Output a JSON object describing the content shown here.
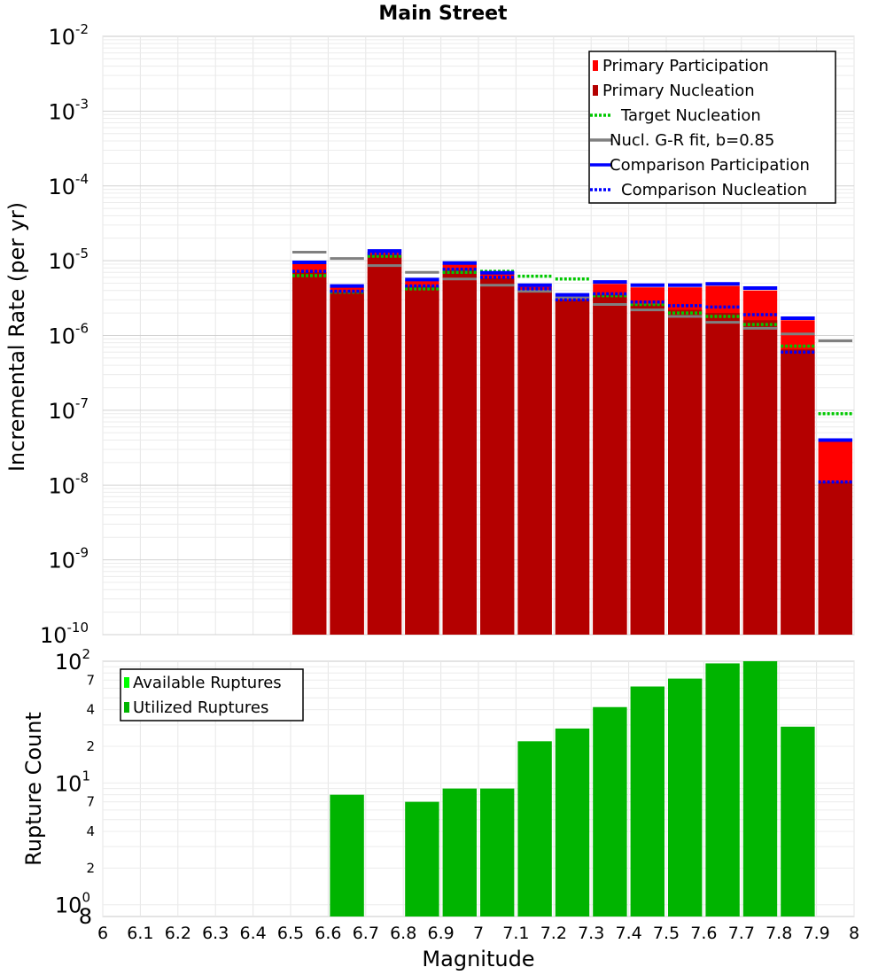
{
  "title": "Main Street",
  "xlabel": "Magnitude",
  "chart_data": [
    {
      "type": "bar",
      "name": "mfd-panel",
      "ylabel": "Incremental Rate (per yr)",
      "yscale": "log",
      "ylim": [
        1e-10,
        0.01
      ],
      "xlim": [
        6.0,
        8.0
      ],
      "bin_width": 0.1,
      "y_major_exponents": [
        -2,
        -3,
        -4,
        -5,
        -6,
        -7,
        -8,
        -9,
        -10
      ],
      "legend_position": "top-right",
      "legend": [
        {
          "label": "Primary Participation",
          "color": "#ff0000",
          "style": "box"
        },
        {
          "label": "Primary Nucleation",
          "color": "#b40000",
          "style": "box"
        },
        {
          "label": "Target Nucleation",
          "color": "#00c800",
          "style": "dotted"
        },
        {
          "label": "Nucl. G-R fit, b=0.85",
          "color": "#808080",
          "style": "solid"
        },
        {
          "label": "Comparison Participation",
          "color": "#0000ff",
          "style": "solid"
        },
        {
          "label": "Comparison Nucleation",
          "color": "#0000ff",
          "style": "dotted"
        }
      ],
      "bin_centers": [
        6.55,
        6.65,
        6.75,
        6.85,
        6.95,
        7.05,
        7.15,
        7.25,
        7.35,
        7.45,
        7.55,
        7.65,
        7.75,
        7.85,
        7.95
      ],
      "series": [
        {
          "name": "Primary Participation",
          "values": [
            9e-06,
            4.4e-06,
            1.3e-05,
            5.4e-06,
            9e-06,
            6.7e-06,
            4.5e-06,
            3.3e-06,
            4.9e-06,
            4.4e-06,
            4.4e-06,
            4.6e-06,
            4e-06,
            1.6e-06,
            3.8e-08
          ]
        },
        {
          "name": "Primary Nucleation",
          "values": [
            7e-06,
            3.8e-06,
            1.2e-05,
            4.5e-06,
            7.5e-06,
            5.8e-06,
            4e-06,
            3e-06,
            3.5e-06,
            2.6e-06,
            2.2e-06,
            2e-06,
            1.6e-06,
            6.5e-07,
            1.1e-08
          ]
        },
        {
          "name": "Target Nucleation",
          "values": [
            6.3e-06,
            3.8e-06,
            1.15e-05,
            4.2e-06,
            7e-06,
            7.2e-06,
            6.2e-06,
            5.7e-06,
            3.4e-06,
            2.6e-06,
            2e-06,
            1.8e-06,
            1.4e-06,
            7.2e-07,
            9e-08
          ]
        },
        {
          "name": "Nucl. G-R fit, b=0.85",
          "values": [
            1.3e-05,
            1.07e-05,
            8.6e-06,
            7e-06,
            5.7e-06,
            4.7e-06,
            3.9e-06,
            3.2e-06,
            2.6e-06,
            2.2e-06,
            1.8e-06,
            1.5e-06,
            1.25e-06,
            1.05e-06,
            8.5e-07
          ]
        },
        {
          "name": "Comparison Participation",
          "values": [
            9.5e-06,
            4.6e-06,
            1.35e-05,
            5.6e-06,
            9.3e-06,
            6.9e-06,
            4.7e-06,
            3.5e-06,
            5.2e-06,
            4.7e-06,
            4.7e-06,
            4.9e-06,
            4.3e-06,
            1.7e-06,
            4e-08
          ]
        },
        {
          "name": "Comparison Nucleation",
          "values": [
            7.2e-06,
            3.9e-06,
            1.25e-05,
            4.6e-06,
            7.7e-06,
            6e-06,
            4.2e-06,
            3e-06,
            3.6e-06,
            2.8e-06,
            2.5e-06,
            2.4e-06,
            1.9e-06,
            6e-07,
            1.1e-08
          ]
        }
      ]
    },
    {
      "type": "bar",
      "name": "count-panel",
      "ylabel": "Rupture Count",
      "yscale": "log",
      "ylim": [
        0.8,
        100
      ],
      "y_major_exponents": [
        0,
        1,
        2
      ],
      "y_minor_ticks": [
        2,
        4,
        7,
        20,
        40,
        70
      ],
      "legend_position": "top-left",
      "legend": [
        {
          "label": "Available Ruptures",
          "color": "#00ff00",
          "style": "box"
        },
        {
          "label": "Utilized Ruptures",
          "color": "#00b400",
          "style": "box"
        }
      ],
      "x_ticks": [
        "6",
        "6.1",
        "6.2",
        "6.3",
        "6.4",
        "6.5",
        "6.6",
        "6.7",
        "6.8",
        "6.9",
        "7",
        "7.1",
        "7.2",
        "7.3",
        "7.4",
        "7.5",
        "7.6",
        "7.7",
        "7.8",
        "7.9",
        "8"
      ],
      "bin_centers": [
        6.65,
        6.85,
        6.95,
        7.05,
        7.15,
        7.25,
        7.35,
        7.45,
        7.55,
        7.65,
        7.75,
        7.85
      ],
      "series": [
        {
          "name": "Utilized Ruptures",
          "values": [
            8,
            7,
            9,
            9,
            22,
            28,
            42,
            62,
            72,
            96,
            100,
            29
          ]
        }
      ]
    }
  ],
  "colors": {
    "primary_participation": "#ff0000",
    "primary_nucleation": "#b40000",
    "target_nucleation": "#00c800",
    "gr_fit": "#808080",
    "comparison": "#0000ff",
    "utilized_ruptures": "#00b400",
    "available_ruptures": "#00ff00"
  }
}
